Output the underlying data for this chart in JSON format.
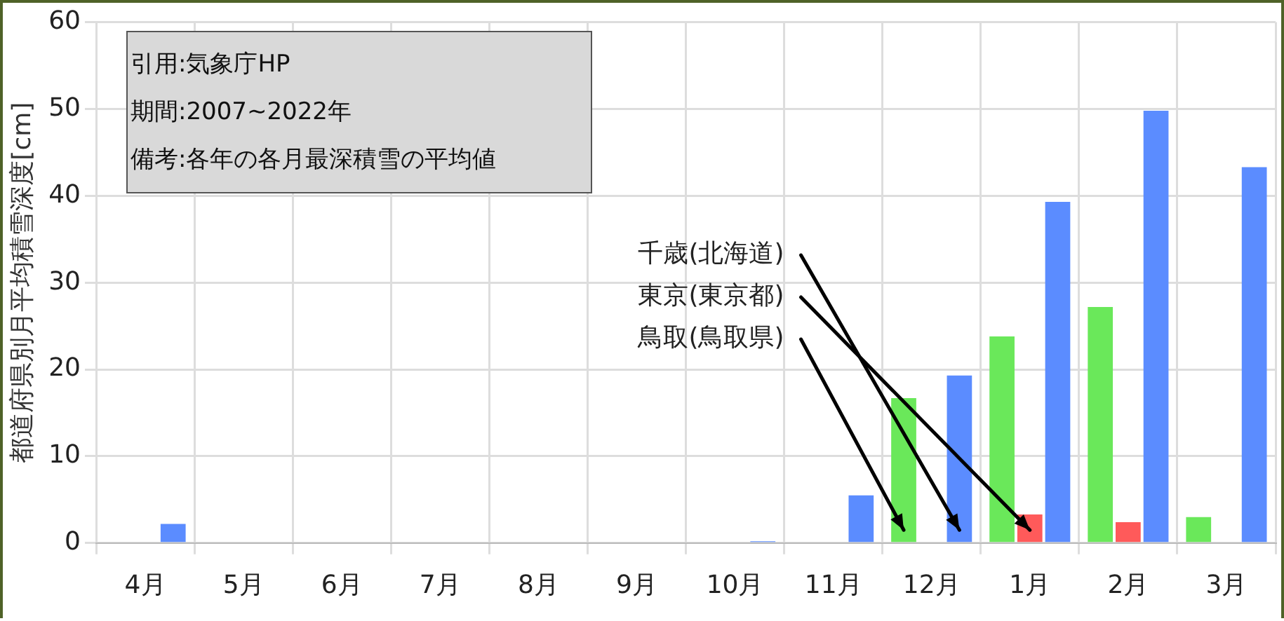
{
  "chart_data": {
    "type": "bar",
    "ylabel": "都道府県別月平均積雪深度[cm]",
    "categories": [
      "4月",
      "5月",
      "6月",
      "7月",
      "8月",
      "9月",
      "10月",
      "11月",
      "12月",
      "1月",
      "2月",
      "3月"
    ],
    "series": [
      {
        "name": "鳥取(鳥取県)",
        "color": "#6ae85a",
        "values": [
          0,
          0,
          0,
          0,
          0,
          0,
          0,
          0,
          16.7,
          23.8,
          27.2,
          3.0
        ]
      },
      {
        "name": "東京(東京都)",
        "color": "#ff5a5a",
        "values": [
          0,
          0,
          0,
          0,
          0,
          0,
          0,
          0,
          0,
          3.3,
          2.4,
          0
        ]
      },
      {
        "name": "千歳(北海道)",
        "color": "#5b8cff",
        "values": [
          2.2,
          0,
          0,
          0,
          0,
          0,
          0.2,
          5.5,
          19.3,
          39.3,
          49.8,
          43.3
        ]
      }
    ],
    "ylim": [
      0,
      60
    ],
    "yticks": [
      0,
      10,
      20,
      30,
      40,
      50,
      60
    ],
    "grid": true,
    "legend": false,
    "annotations": [
      "引用:気象庁HP",
      "期間:2007~2022年",
      "備考:各年の各月最深積雪の平均値"
    ]
  }
}
